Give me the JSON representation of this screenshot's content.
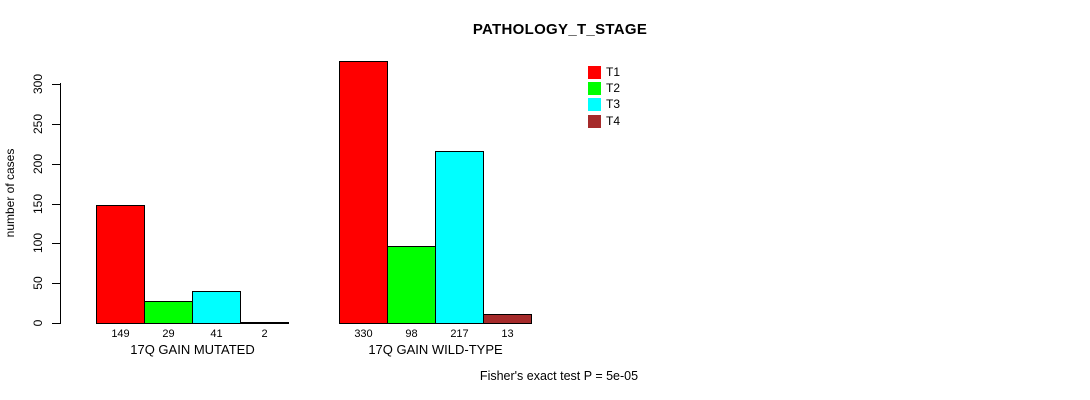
{
  "chart_data": {
    "type": "bar",
    "title": "PATHOLOGY_T_STAGE",
    "ylabel": "number of cases",
    "ylim": [
      0,
      300
    ],
    "yticks": [
      0,
      50,
      100,
      150,
      200,
      250,
      300
    ],
    "categories": [
      "17Q GAIN MUTATED",
      "17Q GAIN WILD-TYPE"
    ],
    "series": [
      {
        "name": "T1",
        "color": "#ff0000",
        "values": [
          149,
          330
        ]
      },
      {
        "name": "T2",
        "color": "#00ff00",
        "values": [
          29,
          98
        ]
      },
      {
        "name": "T3",
        "color": "#00ffff",
        "values": [
          41,
          217
        ]
      },
      {
        "name": "T4",
        "color": "#a52a2a",
        "values": [
          2,
          13
        ]
      }
    ],
    "groups": [
      {
        "label": "17Q GAIN MUTATED",
        "values": [
          149,
          29,
          41,
          2
        ]
      },
      {
        "label": "17Q GAIN WILD-TYPE",
        "values": [
          330,
          98,
          217,
          13
        ]
      }
    ],
    "legend_position": "top-right",
    "grid": false,
    "footnote": "Fisher's exact test P = 5e-05"
  }
}
